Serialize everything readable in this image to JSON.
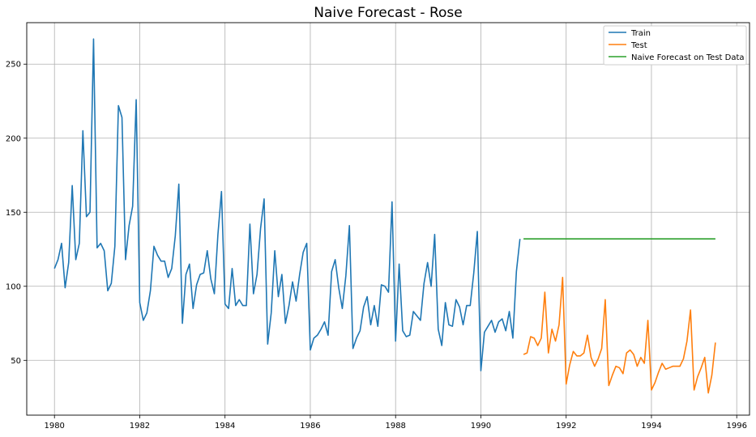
{
  "chart_data": {
    "type": "line",
    "title": "Naive Forecast - Rose",
    "xlabel": "",
    "ylabel": "",
    "xlim": [
      1979.35,
      1996.3
    ],
    "ylim": [
      13,
      278
    ],
    "x_ticks": [
      1980,
      1982,
      1984,
      1986,
      1988,
      1990,
      1992,
      1994,
      1996
    ],
    "y_ticks": [
      50,
      100,
      150,
      200,
      250
    ],
    "grid": true,
    "legend_position": "top-right",
    "series": [
      {
        "name": "Train",
        "color": "#1f77b4",
        "start": 1980.0,
        "step": 0.0833333,
        "values": [
          112,
          118,
          129,
          99,
          116,
          168,
          118,
          129,
          205,
          147,
          150,
          267,
          126,
          129,
          124,
          97,
          102,
          127,
          222,
          214,
          118,
          141,
          154,
          226,
          89,
          77,
          82,
          97,
          127,
          121,
          117,
          117,
          106,
          112,
          134,
          169,
          75,
          108,
          115,
          85,
          101,
          108,
          109,
          124,
          105,
          95,
          135,
          164,
          88,
          85,
          112,
          87,
          91,
          87,
          87,
          142,
          95,
          108,
          139,
          159,
          61,
          82,
          124,
          93,
          108,
          75,
          87,
          103,
          90,
          108,
          123,
          129,
          57,
          65,
          67,
          71,
          76,
          67,
          110,
          118,
          99,
          85,
          107,
          141,
          58,
          65,
          70,
          86,
          93,
          74,
          87,
          73,
          101,
          100,
          96,
          157,
          63,
          115,
          70,
          66,
          67,
          83,
          80,
          77,
          102,
          116,
          100,
          135,
          71,
          60,
          89,
          74,
          73,
          91,
          86,
          74,
          87,
          87,
          109,
          137,
          43,
          69,
          73,
          77,
          69,
          76,
          78,
          70,
          83,
          65,
          110,
          132
        ]
      },
      {
        "name": "Test",
        "color": "#ff7f0e",
        "start": 1991.0,
        "step": 0.0833333,
        "values": [
          54,
          55,
          66,
          65,
          60,
          65,
          96,
          55,
          71,
          63,
          74,
          106,
          34,
          47,
          56,
          53,
          53,
          55,
          67,
          52,
          46,
          51,
          58,
          91,
          33,
          40,
          46,
          45,
          41,
          55,
          57,
          54,
          46,
          52,
          48,
          77,
          30,
          35,
          42,
          48,
          44,
          45,
          46,
          46,
          46,
          51,
          63,
          84,
          30,
          39,
          45,
          52,
          28,
          40,
          62
        ]
      },
      {
        "name": "Naive Forecast on Test Data",
        "color": "#2ca02c",
        "start": 1991.0,
        "step": 0.0833333,
        "constant": 132,
        "count": 55
      }
    ]
  }
}
